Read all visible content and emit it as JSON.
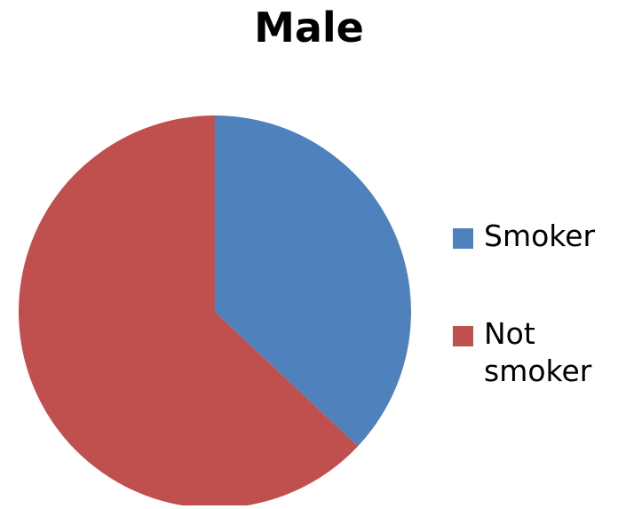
{
  "chart_data": {
    "type": "pie",
    "title": "Male",
    "categories": [
      "Smoker",
      "Not smoker"
    ],
    "values": [
      37,
      63
    ],
    "colors": [
      "#4f81bd",
      "#c0504d"
    ],
    "start_angle_deg": 0,
    "direction": "clockwise",
    "legend_position": "right",
    "legend": [
      {
        "label": "Smoker",
        "color": "#4f81bd"
      },
      {
        "label": "Not smoker",
        "color": "#c0504d"
      }
    ]
  }
}
